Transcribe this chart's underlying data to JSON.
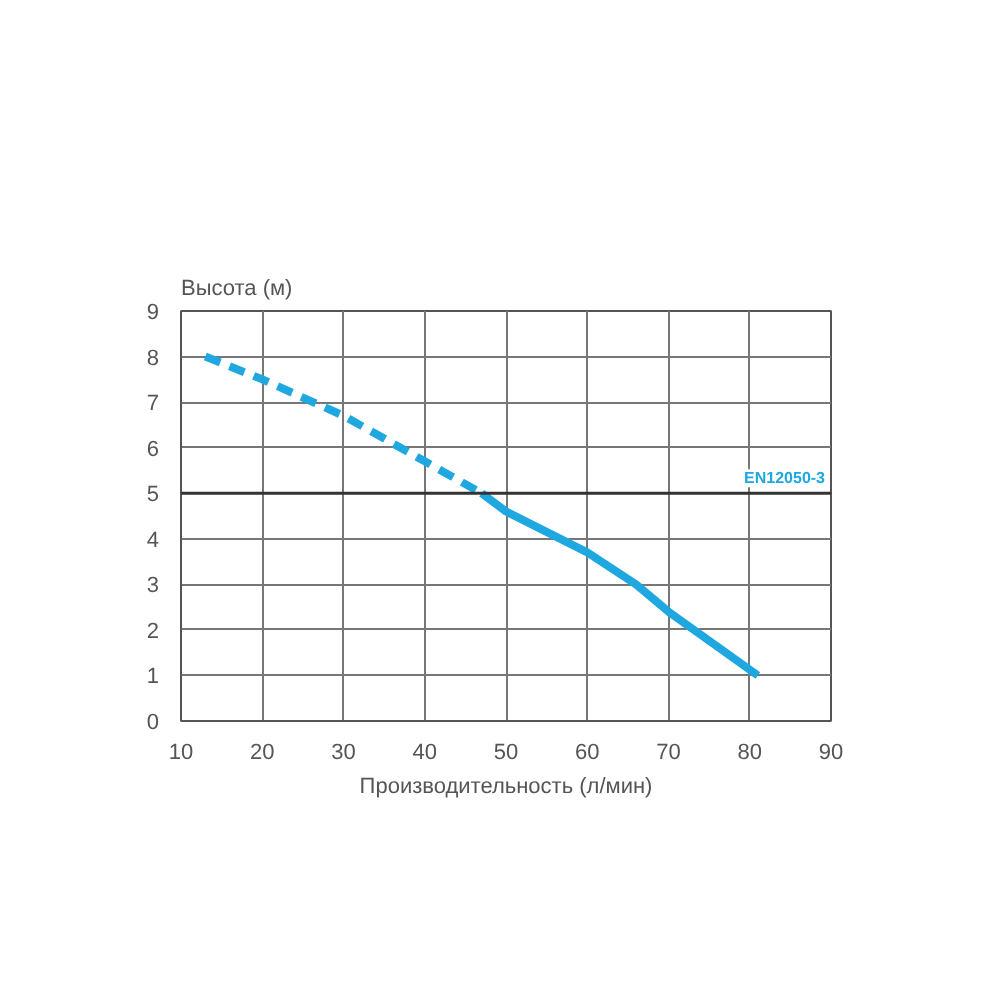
{
  "chart_data": {
    "type": "line",
    "ylabel": "Высота (м)",
    "xlabel": "Производительность (л/мин)",
    "xlim": [
      10,
      90
    ],
    "xticks": [
      10,
      20,
      30,
      40,
      50,
      60,
      70,
      80,
      90
    ],
    "ylim": [
      0,
      9
    ],
    "yticks": [
      0,
      1,
      2,
      3,
      4,
      5,
      6,
      7,
      8,
      9
    ],
    "grid": true,
    "series": [
      {
        "color": "#1fa8e0",
        "line_style": "dashed",
        "x": [
          13,
          20,
          30,
          40,
          47
        ],
        "values": [
          8,
          7.5,
          6.7,
          5.7,
          5
        ]
      },
      {
        "color": "#1fa8e0",
        "line_style": "solid",
        "x": [
          47,
          50,
          60,
          66,
          70,
          81
        ],
        "values": [
          5,
          4.6,
          3.7,
          3,
          2.4,
          1
        ]
      }
    ],
    "ref_lines": [
      {
        "axis": "y",
        "value": 5,
        "label": "EN12050-3",
        "color": "#333333"
      }
    ]
  }
}
